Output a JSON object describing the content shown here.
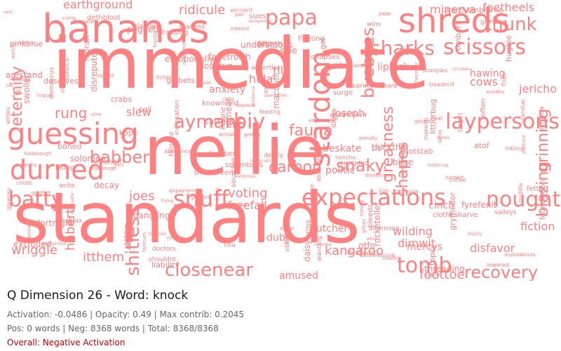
{
  "title": "Q Dimension 26 - Word: knock",
  "stats": {
    "line1": "Activation: -0.0486 | Opacity: 0.49 | Max contrib: 0.2045",
    "line2": "Pos: 0 words | Neg: 8368 words | Total: 8368/8368"
  },
  "overall": "Overall: Negative Activation",
  "colors": {
    "word": "#ff8080",
    "overall": "#cc0000"
  },
  "cloud_words": [
    "immediate",
    "nellie",
    "standards",
    "bananas",
    "shreds",
    "guessing",
    "durned",
    "expectations",
    "papa",
    "stardom",
    "snuff",
    "laypersons",
    "tomb",
    "batty",
    "sharks",
    "scissors",
    "nought",
    "recovery",
    "thunk",
    "closenear",
    "aymans",
    "biv",
    "babber",
    "fauna",
    "snaky",
    "carbon",
    "byebyes",
    "greatness",
    "grinning",
    "shapes",
    "blazing",
    "eternity",
    "shitless",
    "earthground",
    "ridicule",
    "feetheels",
    "minerva",
    "kangaroo",
    "itthem",
    "wriggle",
    "hubert",
    "joes",
    "voting",
    "freefall",
    "rung",
    "slew",
    "joseph",
    "beskate",
    "politic",
    "butcher",
    "wilding",
    "dimwit",
    "mercys",
    "fiction",
    "disfavor",
    "foottoe",
    "jericho",
    "cows",
    "hawing",
    "anxiety",
    "hula",
    "til",
    "liplock",
    "cinch",
    "dubia",
    "amused",
    "fetter",
    "afternoon",
    "chaff",
    "blighty",
    "louie",
    "nixon",
    "indignation",
    "tiddlers",
    "abeyance",
    "gel",
    "poll",
    "pail",
    "yap",
    "spray",
    "pear",
    "sanity",
    "grata",
    "helluva",
    "topsy",
    "whiz",
    "hughie",
    "middlin",
    "winnard",
    "capful",
    "arestand",
    "penalty",
    "solomon",
    "experience",
    "overtime",
    "eater",
    "outin",
    "digits",
    "newcastle",
    "kops",
    "soften",
    "wanting",
    "treadmill",
    "zoo",
    "follower",
    "threefinger",
    "scramtows",
    "stuffe",
    "insane",
    "atmear",
    "midlife",
    "gtfo",
    "honcho",
    "cnote",
    "inkling",
    "bobbin",
    "clothesharve",
    "gryffindor",
    "damascus",
    "lingua",
    "swollen",
    "fleeting",
    "surge",
    "goliath",
    "stompies",
    "arrows",
    "tis",
    "itcher",
    "damnation",
    "buttercup",
    "threading",
    "littlerbug",
    "sizes",
    "persona",
    "extremes",
    "closerun",
    "target",
    "rabrah",
    "deserves",
    "pith",
    "glorious",
    "pinkblue",
    "brandon",
    "doubting",
    "edward",
    "albert",
    "pajamas",
    "dressing",
    "gretna",
    "grips",
    "understoods",
    "dimes",
    "feeding",
    "lowered",
    "isare",
    "jeff",
    "givepay",
    "upandup",
    "thatit",
    "kenneltissue",
    "blimp",
    "pasture",
    "bilge",
    "willies",
    "hurryrush",
    "timbers",
    "snakeoil",
    "canossa",
    "makeith",
    "worldthe",
    "dearly",
    "circuses",
    "earnest",
    "write",
    "rilla",
    "doctors",
    "excluded",
    "disrepute",
    "guessed",
    "mole",
    "tantrum",
    "bleeds",
    "fifththird",
    "decay",
    "roundabouts",
    "nosey",
    "liability",
    "crabs",
    "tatters",
    "slue",
    "fiftieth",
    "dangling",
    "assistance",
    "edgewise",
    "goldfish",
    "valleys",
    "knowntold",
    "flops",
    "shotstab",
    "pegged",
    "frying",
    "unpleasantness",
    "advertise",
    "heal",
    "thickthin",
    "worthemblame",
    "fuelenough",
    "faithless",
    "vino",
    "solly",
    "squad",
    "gibbets",
    "orphanage",
    "boned",
    "fronts",
    "wins",
    "rocketeller",
    "potentia",
    "penates",
    "disuse",
    "atof",
    "awfully",
    "vest",
    "leisure",
    "plainly",
    "halifax",
    "ts",
    "sourcing",
    "devilbent",
    "sockpiercer",
    "daisy",
    "jeers",
    "gitten",
    "residence",
    "emotionally",
    "coffee",
    "bobbysle",
    "edgeways",
    "dethbloot",
    "finegood",
    "basics",
    "chillis",
    "collapses",
    "wellspirited",
    "penned",
    "foundmoon",
    "fyrefenit",
    "macduff",
    "shouldnt",
    "chooks",
    "smithereens",
    "fanetrorth",
    "ashecmuir",
    "fortnight",
    "excepted",
    "crimp"
  ]
}
